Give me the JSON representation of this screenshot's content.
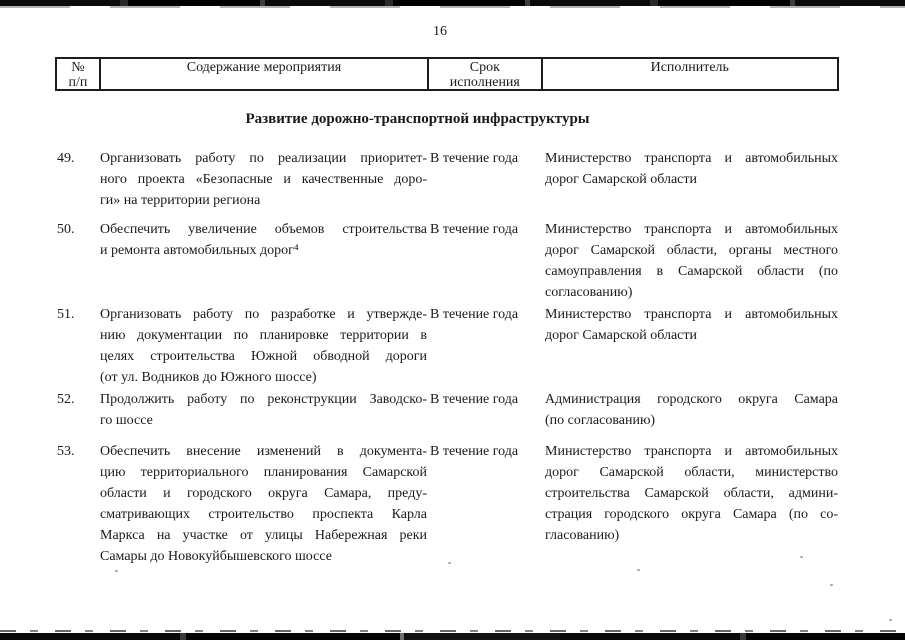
{
  "page": {
    "number": "16"
  },
  "table": {
    "header": {
      "col_num_lines": [
        "№",
        "п/п"
      ],
      "col_content": "Содержание мероприятия",
      "col_term_lines": [
        "Срок",
        "исполнения"
      ],
      "col_executor": "Исполнитель"
    },
    "section_title": "Развитие дорожно-транспортной инфраструктуры",
    "rows": [
      {
        "num": "49.",
        "content_lines": [
          "Организовать работу по реализации приоритет-",
          "ного проекта «Безопасные и качественные доро-",
          "ги» на территории региона"
        ],
        "term": "В течение года",
        "executor_lines": [
          "Министерство транспорта и автомобильных",
          "дорог Самарской области"
        ]
      },
      {
        "num": "50.",
        "content_lines": [
          "Обеспечить увеличение объемов строительства",
          "и ремонта автомобильных дорог⁴"
        ],
        "term": "В течение года",
        "executor_lines": [
          "Министерство транспорта и автомобильных",
          "дорог Самарской области, органы местного",
          "самоуправления в Самарской области (по",
          "согласованию)"
        ]
      },
      {
        "num": "51.",
        "content_lines": [
          "Организовать работу по разработке и утвержде-",
          "нию документации по планировке территории в",
          "целях строительства Южной обводной дороги",
          "(от ул. Водников до Южного шоссе)"
        ],
        "term": "В течение года",
        "executor_lines": [
          "Министерство транспорта и автомобильных",
          "дорог Самарской области"
        ]
      },
      {
        "num": "52.",
        "content_lines": [
          "Продолжить работу по реконструкции Заводско-",
          "го шоссе"
        ],
        "term": "В течение года",
        "executor_lines": [
          "Администрация городского округа Самара",
          "(по согласованию)"
        ]
      },
      {
        "num": "53.",
        "content_lines": [
          "Обеспечить внесение изменений в документа-",
          "цию территориального планирования Самарской",
          "области и городского округа Самара, преду-",
          "сматривающих строительство проспекта Карла",
          "Маркса на участке от улицы Набережная реки",
          "Самары до Новокуйбышевского шоссе"
        ],
        "term": "В течение года",
        "executor_lines": [
          "Министерство транспорта и автомобильных",
          "дорог Самарской области, министерство",
          "строительства Самарской области, админи-",
          "страция городского округа Самара (по со-",
          "гласованию)"
        ]
      }
    ]
  }
}
